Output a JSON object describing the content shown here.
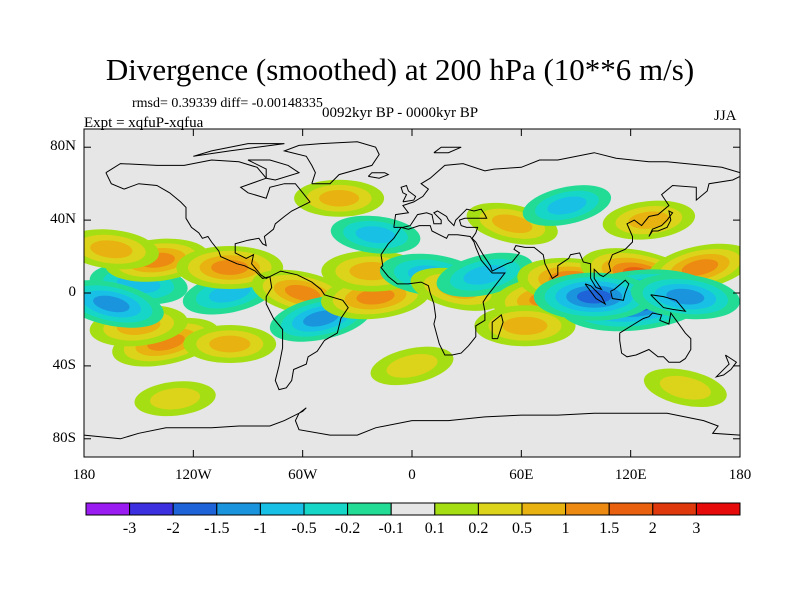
{
  "title": "Divergence (smoothed) at 200 hPa (10**6 m/s)",
  "stats": "rmsd= 0.39339 diff= -0.00148335",
  "experiment": "Expt = xqfuP-xqfua",
  "period": "0092kyr BP - 0000kyr BP",
  "season": "JJA",
  "colors": {
    "background_no_change": "#e6e6e6",
    "coast": "#000000"
  },
  "chart_data": {
    "type": "heatmap",
    "title": "Divergence (smoothed) at 200 hPa (10**6 m/s)",
    "projection": "cylindrical equidistant",
    "xlim": [
      -180,
      180
    ],
    "ylim": [
      -90,
      90
    ],
    "x_ticks": [
      {
        "value": -180,
        "label": "180"
      },
      {
        "value": -120,
        "label": "120W"
      },
      {
        "value": -60,
        "label": "60W"
      },
      {
        "value": 0,
        "label": "0"
      },
      {
        "value": 60,
        "label": "60E"
      },
      {
        "value": 120,
        "label": "120E"
      },
      {
        "value": 180,
        "label": "180"
      }
    ],
    "y_ticks": [
      {
        "value": 80,
        "label": "80N"
      },
      {
        "value": 40,
        "label": "40N"
      },
      {
        "value": 0,
        "label": "0"
      },
      {
        "value": -40,
        "label": "40S"
      },
      {
        "value": -80,
        "label": "80S"
      }
    ],
    "colorbar": {
      "labels": [
        "-3",
        "-2",
        "-1.5",
        "-1",
        "-0.5",
        "-0.2",
        "-0.1",
        "0.1",
        "0.2",
        "0.5",
        "1",
        "1.5",
        "2",
        "3"
      ],
      "colors": [
        "#9b1cf0",
        "#3c2fe0",
        "#1f63d8",
        "#1a95dd",
        "#19c0e6",
        "#16d6c8",
        "#22dc96",
        "#e6e6e6",
        "#a6de14",
        "#dcd41a",
        "#e8b210",
        "#ec8a12",
        "#e9600f",
        "#e0380d",
        "#e60a0a"
      ]
    },
    "anomalies": [
      {
        "lon": -135,
        "lat": -27,
        "value": 1.2
      },
      {
        "lon": -150,
        "lat": -18,
        "value": 0.8
      },
      {
        "lon": -100,
        "lat": -28,
        "value": 0.6
      },
      {
        "lon": -150,
        "lat": 5,
        "value": -0.8
      },
      {
        "lon": -165,
        "lat": -6,
        "value": -1.1
      },
      {
        "lon": -100,
        "lat": 0,
        "value": -0.7
      },
      {
        "lon": -140,
        "lat": 18,
        "value": 1.0
      },
      {
        "lon": -100,
        "lat": 14,
        "value": 1.1
      },
      {
        "lon": -165,
        "lat": 24,
        "value": 0.7
      },
      {
        "lon": -60,
        "lat": 0,
        "value": 1.0
      },
      {
        "lon": -50,
        "lat": -14,
        "value": -1.0
      },
      {
        "lon": -20,
        "lat": -2,
        "value": 1.2
      },
      {
        "lon": -22,
        "lat": 12,
        "value": 0.9
      },
      {
        "lon": 10,
        "lat": 10,
        "value": -0.9
      },
      {
        "lon": 25,
        "lat": 2,
        "value": 0.7
      },
      {
        "lon": 40,
        "lat": 10,
        "value": -0.8
      },
      {
        "lon": 75,
        "lat": -3,
        "value": 1.3
      },
      {
        "lon": 62,
        "lat": -18,
        "value": 0.9
      },
      {
        "lon": 90,
        "lat": 6,
        "value": 1.5
      },
      {
        "lon": 125,
        "lat": 10,
        "value": 1.6
      },
      {
        "lon": 158,
        "lat": 14,
        "value": 1.1
      },
      {
        "lon": 123,
        "lat": -4,
        "value": -2.8
      },
      {
        "lon": 100,
        "lat": -2,
        "value": -1.6
      },
      {
        "lon": 150,
        "lat": -2,
        "value": -1.2
      },
      {
        "lon": 55,
        "lat": 38,
        "value": 0.6
      },
      {
        "lon": 85,
        "lat": 48,
        "value": -0.5
      },
      {
        "lon": 130,
        "lat": 40,
        "value": 0.6
      },
      {
        "lon": -40,
        "lat": 52,
        "value": 0.5
      },
      {
        "lon": -20,
        "lat": 32,
        "value": -0.5
      },
      {
        "lon": 150,
        "lat": -52,
        "value": 0.3
      },
      {
        "lon": 0,
        "lat": -40,
        "value": 0.3
      },
      {
        "lon": -130,
        "lat": -58,
        "value": 0.2
      }
    ]
  }
}
